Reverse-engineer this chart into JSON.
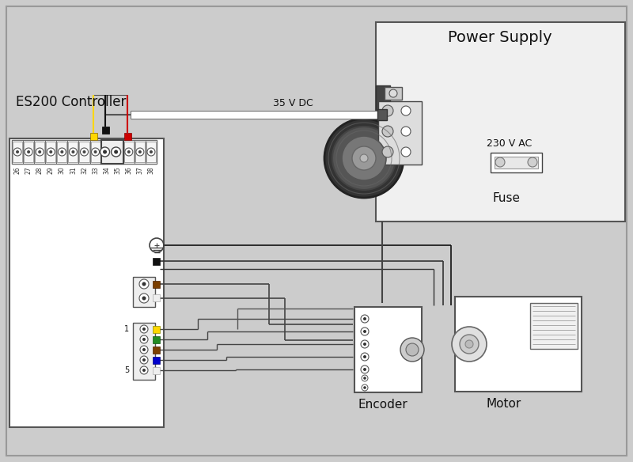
{
  "bg_color": "#cccccc",
  "labels": {
    "es200_controller": "ES200 Controller",
    "power_supply": "Power Supply",
    "encoder": "Encoder",
    "motor": "Motor",
    "fuse": "Fuse",
    "35vdc": "35 V DC",
    "230vac": "230 V AC"
  },
  "term_labels": [
    "26",
    "27",
    "28",
    "29",
    "30",
    "31",
    "32",
    "33",
    "34",
    "35",
    "36",
    "37",
    "38"
  ],
  "pin_colors": [
    "#FFD700",
    "#228B22",
    "#7B3F00",
    "#0000CC",
    "#EEEEEE"
  ],
  "pin_borders": [
    "#888800",
    "#115511",
    "#4a2000",
    "#000077",
    "#aaaaaa"
  ],
  "wc_black": "#111111",
  "wc_yellow": "#FFD700",
  "wc_red": "#CC0000",
  "wc_brown": "#7B3F00",
  "wc_white": "#EEEEEE",
  "wc_green": "#228B22",
  "wc_blue": "#0000CC"
}
